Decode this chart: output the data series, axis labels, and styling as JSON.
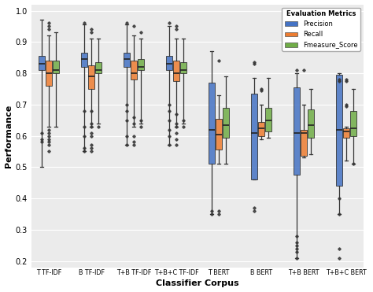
{
  "groups": [
    "T TF-IDF",
    "B TF-IDF",
    "T+B TF-IDF",
    "T+B+C TF-IDF",
    "T BERT",
    "B BERT",
    "T+B BERT",
    "T+B+C BERT"
  ],
  "metrics": [
    "Precision",
    "Recall",
    "Fmeasure_Score"
  ],
  "colors": [
    "#4472C4",
    "#ED7D31",
    "#70AD47"
  ],
  "xlabel": "Classifier Corpus",
  "ylabel": "Performance",
  "ylim": [
    0.18,
    1.02
  ],
  "yticks": [
    0.2,
    0.3,
    0.4,
    0.5,
    0.6,
    0.7,
    0.8,
    0.9,
    1.0
  ],
  "box_data": {
    "T TF-IDF": {
      "Precision": {
        "whislo": 0.5,
        "q1": 0.81,
        "med": 0.83,
        "q3": 0.855,
        "whishi": 0.97,
        "fliers": [
          0.58,
          0.59,
          0.61
        ]
      },
      "Recall": {
        "whislo": 0.63,
        "q1": 0.76,
        "med": 0.8,
        "q3": 0.84,
        "whishi": 0.92,
        "fliers": [
          0.55,
          0.57,
          0.58,
          0.59,
          0.6,
          0.61,
          0.62,
          0.94,
          0.95,
          0.96
        ]
      },
      "Fmeasure_Score": {
        "whislo": 0.63,
        "q1": 0.8,
        "med": 0.81,
        "q3": 0.84,
        "whishi": 0.93,
        "fliers": []
      }
    },
    "B TF-IDF": {
      "Precision": {
        "whislo": 0.55,
        "q1": 0.82,
        "med": 0.845,
        "q3": 0.865,
        "whishi": 0.955,
        "fliers": [
          0.55,
          0.56,
          0.6,
          0.63,
          0.68,
          0.96
        ]
      },
      "Recall": {
        "whislo": 0.63,
        "q1": 0.75,
        "med": 0.79,
        "q3": 0.825,
        "whishi": 0.91,
        "fliers": [
          0.55,
          0.56,
          0.57,
          0.6,
          0.61,
          0.63,
          0.64,
          0.68,
          0.93,
          0.94
        ]
      },
      "Fmeasure_Score": {
        "whislo": 0.64,
        "q1": 0.8,
        "med": 0.81,
        "q3": 0.835,
        "whishi": 0.91,
        "fliers": [
          0.63
        ]
      }
    },
    "T+B TF-IDF": {
      "Precision": {
        "whislo": 0.57,
        "q1": 0.82,
        "med": 0.845,
        "q3": 0.865,
        "whishi": 0.955,
        "fliers": [
          0.57,
          0.6,
          0.65,
          0.68,
          0.7,
          0.96
        ]
      },
      "Recall": {
        "whislo": 0.63,
        "q1": 0.78,
        "med": 0.8,
        "q3": 0.84,
        "whishi": 0.92,
        "fliers": [
          0.57,
          0.58,
          0.6,
          0.64,
          0.66,
          0.95
        ]
      },
      "Fmeasure_Score": {
        "whislo": 0.64,
        "q1": 0.81,
        "med": 0.82,
        "q3": 0.845,
        "whishi": 0.91,
        "fliers": [
          0.63,
          0.65,
          0.93
        ]
      }
    },
    "T+B+C TF-IDF": {
      "Precision": {
        "whislo": 0.57,
        "q1": 0.81,
        "med": 0.83,
        "q3": 0.855,
        "whishi": 0.95,
        "fliers": [
          0.57,
          0.6,
          0.62,
          0.65,
          0.68,
          0.7,
          0.96
        ]
      },
      "Recall": {
        "whislo": 0.63,
        "q1": 0.775,
        "med": 0.8,
        "q3": 0.84,
        "whishi": 0.91,
        "fliers": [
          0.57,
          0.59,
          0.61,
          0.63,
          0.64,
          0.67,
          0.94,
          0.95
        ]
      },
      "Fmeasure_Score": {
        "whislo": 0.64,
        "q1": 0.8,
        "med": 0.81,
        "q3": 0.835,
        "whishi": 0.91,
        "fliers": [
          0.63,
          0.65
        ]
      }
    },
    "T BERT": {
      "Precision": {
        "whislo": 0.35,
        "q1": 0.51,
        "med": 0.62,
        "q3": 0.77,
        "whishi": 0.87,
        "fliers": [
          0.35,
          0.36
        ]
      },
      "Recall": {
        "whislo": 0.51,
        "q1": 0.555,
        "med": 0.605,
        "q3": 0.655,
        "whishi": 0.73,
        "fliers": [
          0.35,
          0.36,
          0.84
        ]
      },
      "Fmeasure_Score": {
        "whislo": 0.51,
        "q1": 0.595,
        "med": 0.635,
        "q3": 0.69,
        "whishi": 0.79,
        "fliers": []
      }
    },
    "B BERT": {
      "Precision": {
        "whislo": 0.46,
        "q1": 0.46,
        "med": 0.61,
        "q3": 0.735,
        "whishi": 0.785,
        "fliers": [
          0.36,
          0.37,
          0.83,
          0.835
        ]
      },
      "Recall": {
        "whislo": 0.59,
        "q1": 0.6,
        "med": 0.625,
        "q3": 0.645,
        "whishi": 0.7,
        "fliers": [
          0.745,
          0.75
        ]
      },
      "Fmeasure_Score": {
        "whislo": 0.595,
        "q1": 0.615,
        "med": 0.65,
        "q3": 0.69,
        "whishi": 0.785,
        "fliers": []
      }
    },
    "T+B BERT": {
      "Precision": {
        "whislo": 0.21,
        "q1": 0.475,
        "med": 0.61,
        "q3": 0.755,
        "whishi": 0.8,
        "fliers": [
          0.21,
          0.23,
          0.24,
          0.25,
          0.26,
          0.28,
          0.81
        ]
      },
      "Recall": {
        "whislo": 0.53,
        "q1": 0.535,
        "med": 0.61,
        "q3": 0.62,
        "whishi": 0.7,
        "fliers": [
          0.81
        ]
      },
      "Fmeasure_Score": {
        "whislo": 0.54,
        "q1": 0.595,
        "med": 0.635,
        "q3": 0.685,
        "whishi": 0.75,
        "fliers": []
      }
    },
    "T+B+C BERT": {
      "Precision": {
        "whislo": 0.35,
        "q1": 0.44,
        "med": 0.62,
        "q3": 0.795,
        "whishi": 0.8,
        "fliers": [
          0.21,
          0.24,
          0.35,
          0.4,
          0.775,
          0.78
        ]
      },
      "Recall": {
        "whislo": 0.52,
        "q1": 0.595,
        "med": 0.615,
        "q3": 0.625,
        "whishi": 0.63,
        "fliers": [
          0.695,
          0.7,
          0.775,
          0.78
        ]
      },
      "Fmeasure_Score": {
        "whislo": 0.51,
        "q1": 0.6,
        "med": 0.625,
        "q3": 0.68,
        "whishi": 0.75,
        "fliers": [
          0.51
        ]
      }
    }
  },
  "legend_title": "Evaluation Metrics",
  "box_width": 0.18,
  "group_width": 1.2
}
